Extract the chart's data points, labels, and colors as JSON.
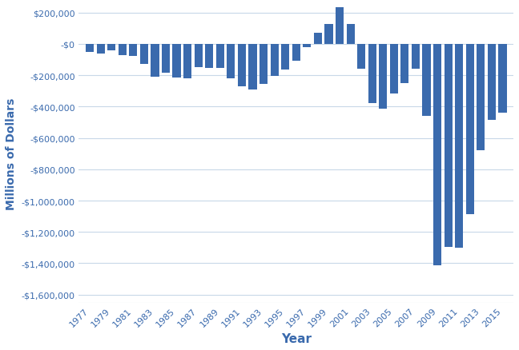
{
  "years": [
    1977,
    1978,
    1979,
    1980,
    1981,
    1982,
    1983,
    1984,
    1985,
    1986,
    1987,
    1988,
    1989,
    1990,
    1991,
    1992,
    1993,
    1994,
    1995,
    1996,
    1997,
    1998,
    1999,
    2000,
    2001,
    2002,
    2003,
    2004,
    2005,
    2006,
    2007,
    2008,
    2009,
    2010,
    2011,
    2012,
    2013,
    2014,
    2015
  ],
  "values": [
    -53700,
    -59200,
    -40700,
    -73800,
    -78900,
    -127900,
    -207800,
    -185300,
    -212300,
    -221200,
    -149700,
    -155100,
    -152500,
    -221000,
    -269200,
    -290300,
    -255100,
    -203200,
    -163900,
    -107400,
    -21900,
    69300,
    125600,
    236200,
    128200,
    -157800,
    -377600,
    -412700,
    -318300,
    -248200,
    -160700,
    -458600,
    -1412700,
    -1294100,
    -1299600,
    -1087000,
    -679500,
    -484600,
    -438400
  ],
  "bar_color": "#3a6aad",
  "background_color": "#ffffff",
  "grid_color": "#c8d8e8",
  "xlabel": "Year",
  "ylabel": "Millions of Dollars",
  "xlabel_fontsize": 11,
  "ylabel_fontsize": 10,
  "tick_color": "#3a6aad",
  "axis_label_color": "#3a6aad",
  "tick_fontsize": 8,
  "ylim_min": -1650000,
  "ylim_max": 250000,
  "yticks": [
    200000,
    0,
    -200000,
    -400000,
    -600000,
    -800000,
    -1000000,
    -1200000,
    -1400000,
    -1600000
  ],
  "figsize": [
    6.48,
    4.39
  ],
  "dpi": 100,
  "bar_width": 0.75
}
